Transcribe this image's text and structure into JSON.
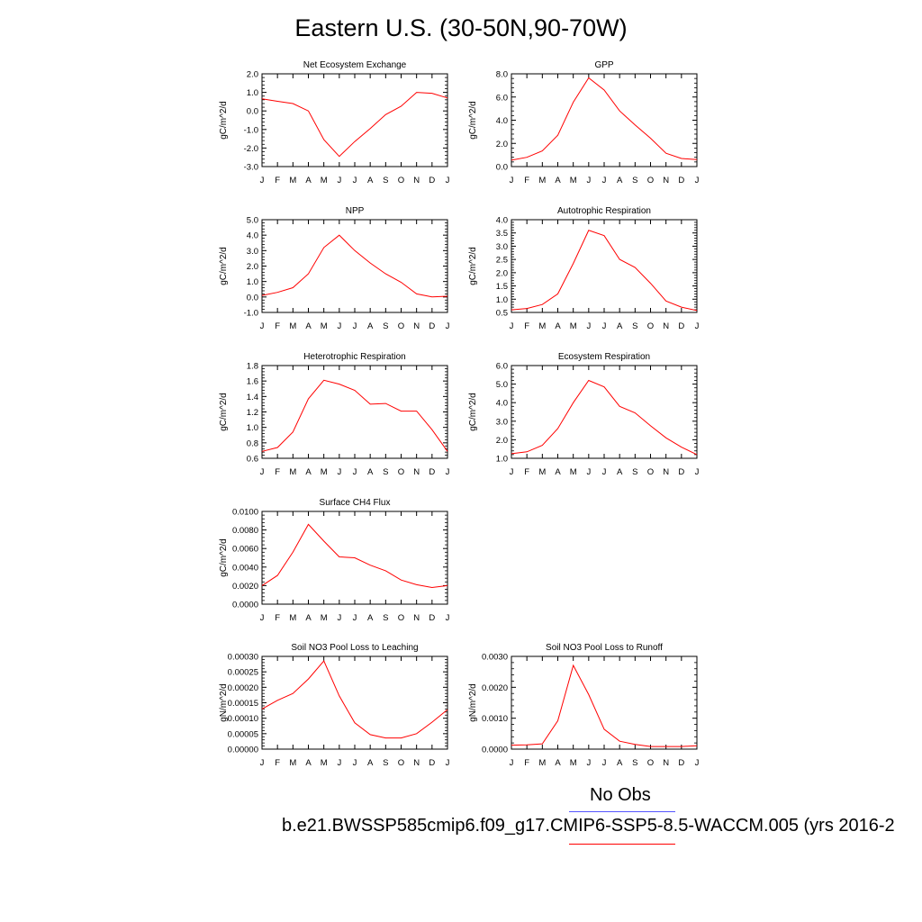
{
  "figure": {
    "title": "Eastern U.S. (30-50N,90-70W)",
    "legend": {
      "obs_label": "No Obs",
      "case_label": "b.e21.BWSSP585cmip6.f09_g17.CMIP6-SSP5-8.5-WACCM.005 (yrs 2016-2",
      "obs_color": "#5555ff",
      "case_color": "#ff0000"
    }
  },
  "chart_data": [
    {
      "id": "nee",
      "type": "line",
      "title": "Net Ecosystem Exchange",
      "ylabel": "gC/m^2/d",
      "xlabel": "",
      "x": [
        "J",
        "F",
        "M",
        "A",
        "M",
        "J",
        "J",
        "A",
        "S",
        "O",
        "N",
        "D",
        "J"
      ],
      "ylim": [
        -3.0,
        2.0
      ],
      "yticks": [
        "-3.0",
        "-2.0",
        "-1.0",
        "0.0",
        "1.0",
        "2.0"
      ],
      "series": [
        {
          "values": [
            0.65,
            0.52,
            0.4,
            0.0,
            -1.55,
            -2.45,
            -1.65,
            -0.95,
            -0.2,
            0.25,
            1.0,
            0.95,
            0.7
          ]
        }
      ]
    },
    {
      "id": "gpp",
      "type": "line",
      "title": "GPP",
      "ylabel": "gC/m^2/d",
      "xlabel": "",
      "x": [
        "J",
        "F",
        "M",
        "A",
        "M",
        "J",
        "J",
        "A",
        "S",
        "O",
        "N",
        "D",
        "J"
      ],
      "ylim": [
        0.0,
        8.0
      ],
      "yticks": [
        "0.0",
        "2.0",
        "4.0",
        "6.0",
        "8.0"
      ],
      "series": [
        {
          "values": [
            0.55,
            0.8,
            1.35,
            2.7,
            5.55,
            7.65,
            6.6,
            4.8,
            3.6,
            2.45,
            1.15,
            0.7,
            0.6
          ]
        }
      ]
    },
    {
      "id": "npp",
      "type": "line",
      "title": "NPP",
      "ylabel": "gC/m^2/d",
      "xlabel": "",
      "x": [
        "J",
        "F",
        "M",
        "A",
        "M",
        "J",
        "J",
        "A",
        "S",
        "O",
        "N",
        "D",
        "J"
      ],
      "ylim": [
        -1.0,
        5.0
      ],
      "yticks": [
        "-1.0",
        "0.0",
        "1.0",
        "2.0",
        "3.0",
        "4.0",
        "5.0"
      ],
      "series": [
        {
          "values": [
            0.1,
            0.3,
            0.6,
            1.5,
            3.2,
            4.0,
            3.0,
            2.2,
            1.5,
            0.95,
            0.2,
            0.0,
            0.05
          ]
        }
      ]
    },
    {
      "id": "ar",
      "type": "line",
      "title": "Autotrophic Respiration",
      "ylabel": "gC/m^2/d",
      "xlabel": "",
      "x": [
        "J",
        "F",
        "M",
        "A",
        "M",
        "J",
        "J",
        "A",
        "S",
        "O",
        "N",
        "D",
        "J"
      ],
      "ylim": [
        0.5,
        4.0
      ],
      "yticks": [
        "0.5",
        "1.0",
        "1.5",
        "2.0",
        "2.5",
        "3.0",
        "3.5",
        "4.0"
      ],
      "series": [
        {
          "values": [
            0.6,
            0.65,
            0.8,
            1.2,
            2.35,
            3.6,
            3.4,
            2.5,
            2.2,
            1.6,
            0.93,
            0.7,
            0.57
          ]
        }
      ]
    },
    {
      "id": "hr",
      "type": "line",
      "title": "Heterotrophic Respiration",
      "ylabel": "gC/m^2/d",
      "xlabel": "",
      "x": [
        "J",
        "F",
        "M",
        "A",
        "M",
        "J",
        "J",
        "A",
        "S",
        "O",
        "N",
        "D",
        "J"
      ],
      "ylim": [
        0.6,
        1.8
      ],
      "yticks": [
        "0.6",
        "0.8",
        "1.0",
        "1.2",
        "1.4",
        "1.6",
        "1.8"
      ],
      "series": [
        {
          "values": [
            0.69,
            0.74,
            0.94,
            1.37,
            1.61,
            1.56,
            1.48,
            1.3,
            1.31,
            1.21,
            1.21,
            0.97,
            0.69
          ]
        }
      ]
    },
    {
      "id": "er",
      "type": "line",
      "title": "Ecosystem Respiration",
      "ylabel": "gC/m^2/d",
      "xlabel": "",
      "x": [
        "J",
        "F",
        "M",
        "A",
        "M",
        "J",
        "J",
        "A",
        "S",
        "O",
        "N",
        "D",
        "J"
      ],
      "ylim": [
        1.0,
        6.0
      ],
      "yticks": [
        "1.0",
        "2.0",
        "3.0",
        "4.0",
        "5.0",
        "6.0"
      ],
      "series": [
        {
          "values": [
            1.25,
            1.35,
            1.7,
            2.6,
            4.0,
            5.2,
            4.85,
            3.8,
            3.45,
            2.75,
            2.1,
            1.6,
            1.2
          ]
        }
      ]
    },
    {
      "id": "ch4",
      "type": "line",
      "title": "Surface CH4 Flux",
      "ylabel": "gC/m^2/d",
      "xlabel": "",
      "x": [
        "J",
        "F",
        "M",
        "A",
        "M",
        "J",
        "J",
        "A",
        "S",
        "O",
        "N",
        "D",
        "J"
      ],
      "ylim": [
        0.0,
        0.01
      ],
      "yticks": [
        "0.0000",
        "0.0020",
        "0.0040",
        "0.0060",
        "0.0080",
        "0.0100"
      ],
      "series": [
        {
          "values": [
            0.002,
            0.0031,
            0.0056,
            0.0086,
            0.0068,
            0.0051,
            0.005,
            0.0042,
            0.0036,
            0.0026,
            0.0021,
            0.0018,
            0.002
          ]
        }
      ]
    },
    {
      "id": "leach",
      "type": "line",
      "title": "Soil NO3 Pool Loss to Leaching",
      "ylabel": "gN/m^2/d",
      "xlabel": "",
      "x": [
        "J",
        "F",
        "M",
        "A",
        "M",
        "J",
        "J",
        "A",
        "S",
        "O",
        "N",
        "D",
        "J"
      ],
      "ylim": [
        0.0,
        0.0003
      ],
      "yticks": [
        "0.00000",
        "0.00005",
        "0.00010",
        "0.00015",
        "0.00020",
        "0.00025",
        "0.00030"
      ],
      "series": [
        {
          "values": [
            0.00013,
            0.000158,
            0.00018,
            0.000227,
            0.000285,
            0.000172,
            8.5e-05,
            4.7e-05,
            3.6e-05,
            3.6e-05,
            5e-05,
            8.7e-05,
            0.000128
          ]
        }
      ]
    },
    {
      "id": "runoff",
      "type": "line",
      "title": "Soil NO3 Pool Loss to Runoff",
      "ylabel": "gN/m^2/d",
      "xlabel": "",
      "x": [
        "J",
        "F",
        "M",
        "A",
        "M",
        "J",
        "J",
        "A",
        "S",
        "O",
        "N",
        "D",
        "J"
      ],
      "ylim": [
        0.0,
        0.0035
      ],
      "yticks": [
        "0.0000",
        "0.0010",
        "0.0020",
        "0.0030"
      ],
      "series": [
        {
          "values": [
            0.00015,
            0.00016,
            0.0002,
            0.00107,
            0.00316,
            0.00206,
            0.00075,
            0.0003,
            0.00018,
            0.0001,
            0.0001,
            0.0001,
            0.00013
          ]
        }
      ]
    }
  ]
}
